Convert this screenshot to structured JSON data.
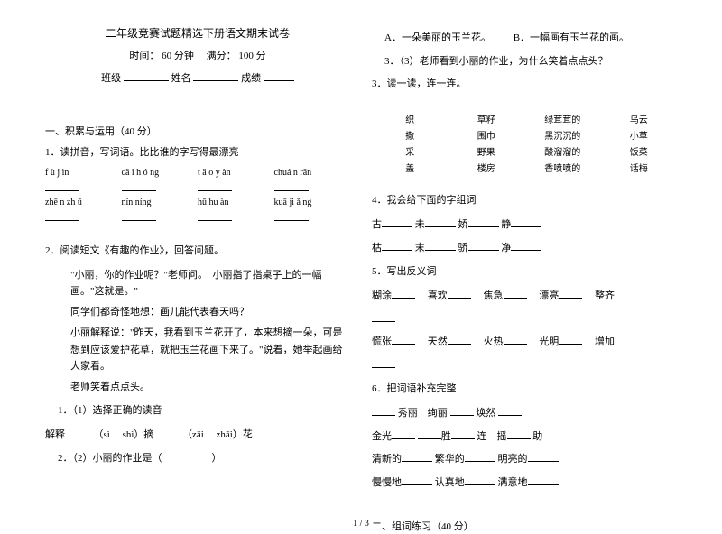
{
  "header": {
    "title": "二年级竞赛试题精选下册语文期末试卷",
    "timeline": "时间：",
    "time_val": "60 分钟",
    "full_label": "满分：",
    "full_val": "100 分",
    "class_label": "班级",
    "name_label": "姓名",
    "score_label": "成绩"
  },
  "s1": {
    "heading": "一、积累与运用（40 分）",
    "q1_label": "1．读拼音，写词语。比比谁的字写得最漂亮",
    "pinyin": {
      "r1c1": "f ù j ìn",
      "r1c2": "cǎ i h ó ng",
      "r1c3": "t ǎ o y àn",
      "r1c4": "chuá n rǎn",
      "r2c1": "zhē n zh ū",
      "r2c2": "nín níng",
      "r2c3": "hū hu àn",
      "r2c4": "kuā ji ǎ ng"
    },
    "q2_label": "2．阅读短文《有趣的作业》，回答问题。",
    "p1": "\"小丽，你的作业呢？\"老师问。　小丽指了指桌子上的一幅画。\"这就是。\"",
    "p2": "同学们都奇怪地想：画儿能代表春天吗？",
    "p3": "小丽解释说：\"昨天，我看到玉兰花开了，本来想摘一朵，可是想到应该爱护花草，就把玉兰花画下来了。\"说着，她举起画给大家看。",
    "p4": "老师笑着点点头。",
    "q2_1": "1．（1）选择正确的读音",
    "q2_1_text1": "解释",
    "q2_1_py1a": "（sì",
    "q2_1_py1b": "shì）摘",
    "q2_1_py2a": "（zāi",
    "q2_1_py2b": "zhāi）花",
    "q2_2": "2．（2）小丽的作业是（　　　　　）"
  },
  "right": {
    "ab": {
      "a": "A．一朵美丽的玉兰花。",
      "b": "B．一幅画有玉兰花的画。"
    },
    "q2_3": "3．（3）老师看到小丽的作业，为什么笑着点点头？",
    "q3_label": "3．读一读，连一连。",
    "match": {
      "r1": {
        "a": "织",
        "b": "草籽",
        "c": "绿茸茸的",
        "d": "乌云"
      },
      "r2": {
        "a": "撒",
        "b": "围巾",
        "c": "黑沉沉的",
        "d": "小草"
      },
      "r3": {
        "a": "采",
        "b": "野果",
        "c": "酸溜溜的",
        "d": "饭菜"
      },
      "r4": {
        "a": "盖",
        "b": "楼房",
        "c": "香喷喷的",
        "d": "话梅"
      }
    },
    "q4_label": "4．我会给下面的字组词",
    "q4_r1": {
      "a": "古",
      "b": "未",
      "c": "娇",
      "d": "静"
    },
    "q4_r2": {
      "a": "枯",
      "b": "末",
      "c": "骄",
      "d": "净"
    },
    "q5_label": "5．写出反义词",
    "q5_r1": {
      "a": "糊涂",
      "b": "喜欢",
      "c": "焦急",
      "d": "漂亮",
      "e": "整齐"
    },
    "q5_r2": {
      "a": "慌张",
      "b": "天然",
      "c": "火热",
      "d": "光明",
      "e": "增加"
    },
    "q6_label": "6．把词语补充完整",
    "q6_r1": "秀丽　绚丽",
    "q6_r1b": "焕然",
    "q6_r2a": "金光",
    "q6_r2b": "胜",
    "q6_r2c": "连　摇",
    "q6_r2d": "助",
    "q6_r3a": "清新的",
    "q6_r3b": "繁华的",
    "q6_r3c": "明亮的",
    "q6_r4a": "慢慢地",
    "q6_r4b": "认真地",
    "q6_r4c": "满意地"
  },
  "s2": {
    "heading": "二、组词练习（40 分）"
  },
  "pagenum": "1 / 3"
}
